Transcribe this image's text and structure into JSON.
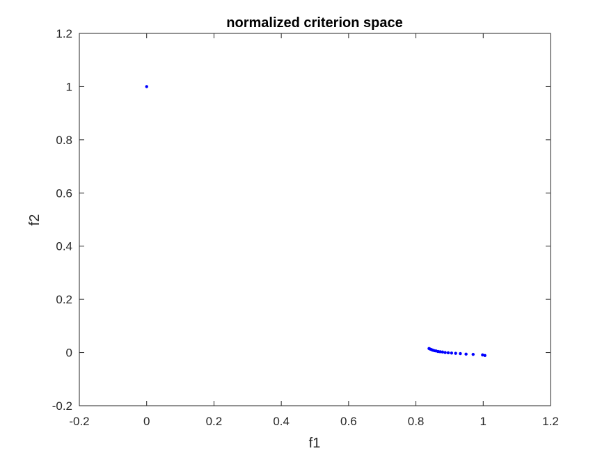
{
  "chart_data": {
    "type": "scatter",
    "title": "normalized criterion space",
    "xlabel": "f1",
    "ylabel": "f2",
    "xlim": [
      -0.2,
      1.2
    ],
    "ylim": [
      -0.2,
      1.2
    ],
    "x_ticks": [
      "-0.2",
      "0",
      "0.2",
      "0.4",
      "0.6",
      "0.8",
      "1",
      "1.2"
    ],
    "y_ticks": [
      "-0.2",
      "0",
      "0.2",
      "0.4",
      "0.6",
      "0.8",
      "1",
      "1.2"
    ],
    "grid": false,
    "marker_color": "#0000ff",
    "series": [
      {
        "x": [
          0.0,
          0.839,
          0.842,
          0.846,
          0.85,
          0.855,
          0.86,
          0.866,
          0.872,
          0.879,
          0.887,
          0.896,
          0.906,
          0.918,
          0.932,
          0.949,
          0.97,
          0.998,
          1.005
        ],
        "y": [
          1.0,
          0.015,
          0.013,
          0.011,
          0.009,
          0.007,
          0.006,
          0.004,
          0.003,
          0.002,
          0.0,
          -0.001,
          -0.002,
          -0.003,
          -0.004,
          -0.006,
          -0.007,
          -0.009,
          -0.011
        ]
      }
    ]
  }
}
